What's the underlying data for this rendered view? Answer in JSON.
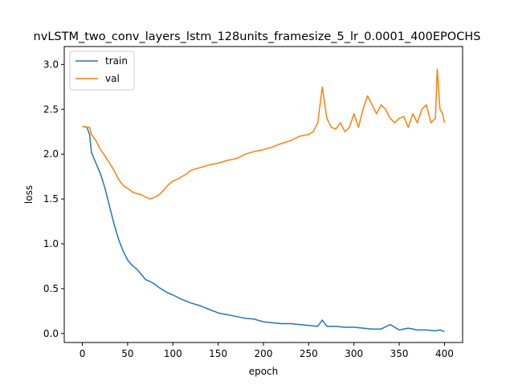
{
  "chart_data": {
    "type": "line",
    "title": "nvLSTM_two_conv_layers_lstm_128units_framesize_5_lr_0.0001_400EPOCHS",
    "xlabel": "epoch",
    "ylabel": "loss",
    "xlim": [
      -20,
      420
    ],
    "ylim": [
      -0.1,
      3.2
    ],
    "xticks": [
      0,
      50,
      100,
      150,
      200,
      250,
      300,
      350,
      400
    ],
    "yticks": [
      0.0,
      0.5,
      1.0,
      1.5,
      2.0,
      2.5,
      3.0
    ],
    "xtick_labels": [
      "0",
      "50",
      "100",
      "150",
      "200",
      "250",
      "300",
      "350",
      "400"
    ],
    "ytick_labels": [
      "0.0",
      "0.5",
      "1.0",
      "1.5",
      "2.0",
      "2.5",
      "3.0"
    ],
    "legend_position": "upper-left",
    "grid": false,
    "series": [
      {
        "name": "train",
        "color": "#1f77b4",
        "x": [
          0,
          5,
          8,
          10,
          15,
          20,
          25,
          30,
          35,
          40,
          45,
          50,
          55,
          60,
          65,
          70,
          75,
          80,
          85,
          90,
          95,
          100,
          110,
          120,
          130,
          140,
          150,
          160,
          170,
          180,
          190,
          200,
          210,
          220,
          230,
          240,
          250,
          260,
          265,
          270,
          280,
          290,
          300,
          310,
          320,
          330,
          340,
          350,
          360,
          370,
          380,
          390,
          395,
          400
        ],
        "y": [
          2.31,
          2.3,
          2.22,
          2.02,
          1.9,
          1.78,
          1.62,
          1.42,
          1.22,
          1.05,
          0.92,
          0.82,
          0.76,
          0.72,
          0.66,
          0.6,
          0.58,
          0.55,
          0.51,
          0.48,
          0.45,
          0.43,
          0.38,
          0.34,
          0.31,
          0.27,
          0.23,
          0.21,
          0.19,
          0.17,
          0.16,
          0.13,
          0.12,
          0.11,
          0.11,
          0.1,
          0.09,
          0.08,
          0.15,
          0.08,
          0.08,
          0.07,
          0.07,
          0.06,
          0.05,
          0.05,
          0.1,
          0.04,
          0.06,
          0.04,
          0.04,
          0.03,
          0.04,
          0.02
        ]
      },
      {
        "name": "val",
        "color": "#ff7f0e",
        "x": [
          0,
          5,
          8,
          10,
          15,
          20,
          25,
          30,
          35,
          40,
          45,
          50,
          55,
          60,
          65,
          70,
          75,
          80,
          85,
          90,
          95,
          100,
          105,
          110,
          115,
          120,
          130,
          140,
          150,
          160,
          170,
          180,
          190,
          200,
          210,
          220,
          230,
          240,
          250,
          255,
          260,
          265,
          270,
          275,
          280,
          285,
          290,
          295,
          300,
          305,
          310,
          315,
          320,
          325,
          330,
          335,
          340,
          345,
          350,
          355,
          360,
          365,
          370,
          375,
          380,
          385,
          390,
          392,
          395,
          398,
          400
        ],
        "y": [
          2.31,
          2.3,
          2.3,
          2.22,
          2.15,
          2.05,
          1.98,
          1.9,
          1.82,
          1.72,
          1.65,
          1.62,
          1.58,
          1.56,
          1.55,
          1.52,
          1.5,
          1.52,
          1.55,
          1.6,
          1.66,
          1.7,
          1.72,
          1.75,
          1.78,
          1.82,
          1.85,
          1.88,
          1.9,
          1.93,
          1.95,
          2.0,
          2.03,
          2.05,
          2.08,
          2.12,
          2.15,
          2.2,
          2.22,
          2.25,
          2.35,
          2.75,
          2.4,
          2.3,
          2.28,
          2.35,
          2.25,
          2.3,
          2.45,
          2.3,
          2.5,
          2.65,
          2.55,
          2.45,
          2.55,
          2.5,
          2.4,
          2.35,
          2.4,
          2.42,
          2.3,
          2.45,
          2.35,
          2.5,
          2.55,
          2.35,
          2.4,
          2.95,
          2.5,
          2.45,
          2.35
        ]
      }
    ]
  }
}
